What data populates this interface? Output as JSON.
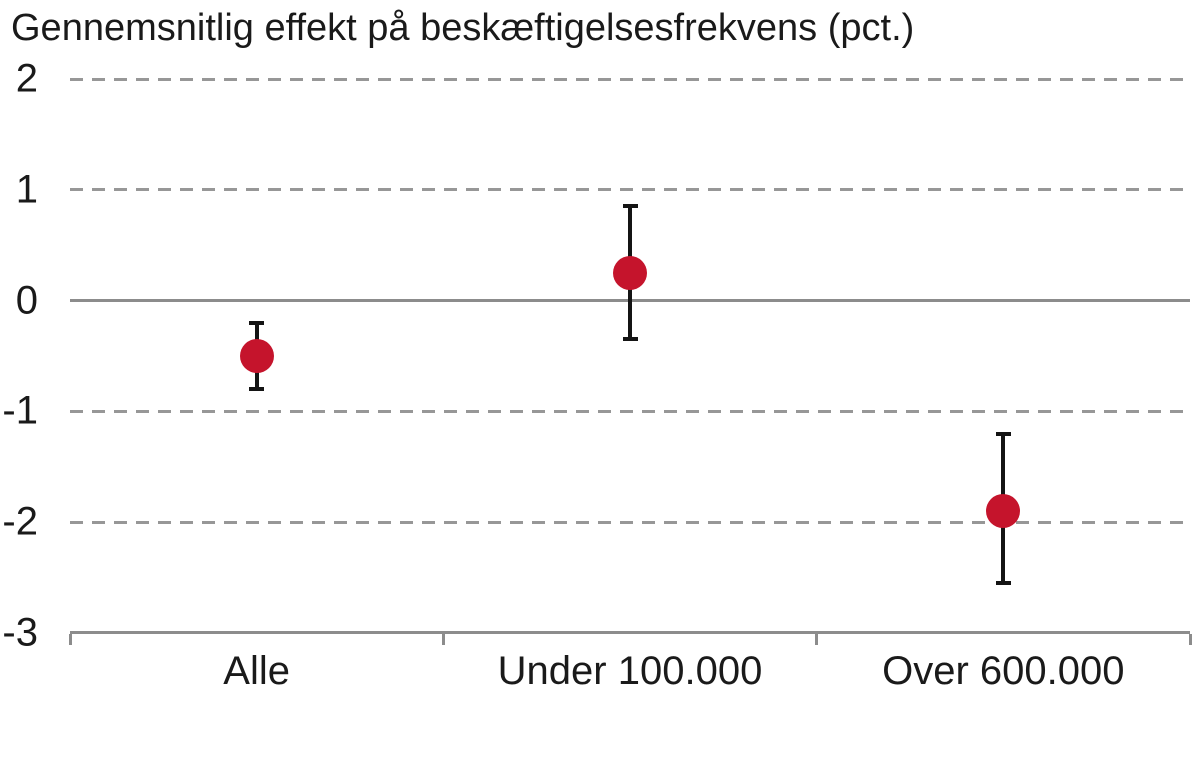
{
  "chart_data": {
    "type": "scatter",
    "subtype": "point-estimate-with-confidence-intervals",
    "title": "Gennemsnitlig effekt på beskæftigelsesfrekvens (pct.)",
    "xlabel": "",
    "ylabel": "",
    "categories": [
      "Alle",
      "Under 100.000",
      "Over 600.000"
    ],
    "series": [
      {
        "name": "Gennemsnitlig effekt",
        "values": [
          -0.5,
          0.25,
          -1.9
        ],
        "ci_low": [
          -0.8,
          -0.35,
          -2.55
        ],
        "ci_high": [
          -0.2,
          0.85,
          -1.2
        ]
      }
    ],
    "ylim": [
      -3,
      2
    ],
    "yticks": [
      2,
      1,
      0,
      -1,
      -2,
      -3
    ],
    "grid": "horizontal dashed gridlines at 2, 1, -1, -2; solid line at 0; solid bottom axis at -3 with category boundary ticks",
    "legend": "none",
    "colors": {
      "marker": "#c5142c",
      "error_bar": "#141414",
      "gridline": "#979797",
      "axis": "#8c8c8c",
      "text": "#1a1a1a",
      "background": "#ffffff"
    }
  }
}
